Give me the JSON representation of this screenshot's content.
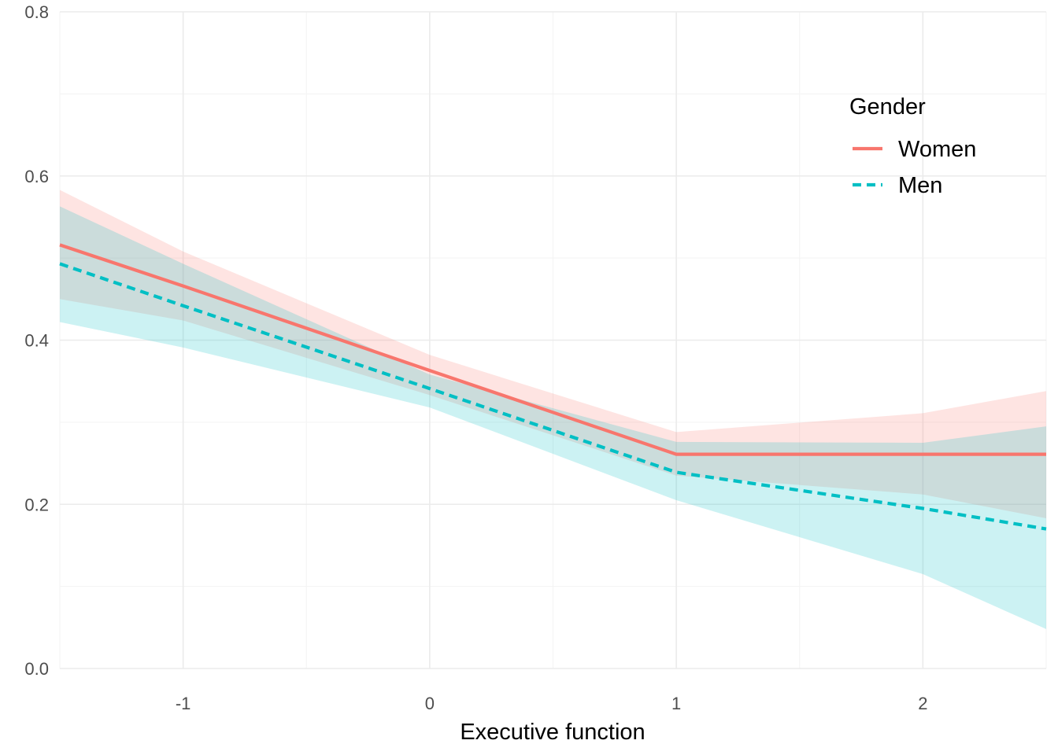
{
  "chart_data": {
    "type": "line",
    "xlabel": "Executive function",
    "ylabel": "",
    "xlim": [
      -1.5,
      2.5
    ],
    "ylim": [
      0,
      0.8
    ],
    "x_ticks": [
      -1,
      0,
      1,
      2
    ],
    "x_tick_labels": [
      "-1",
      "0",
      "1",
      "2"
    ],
    "y_ticks": [
      0,
      0.2,
      0.4,
      0.6,
      0.8
    ],
    "y_tick_labels": [
      "0.0",
      "0.2",
      "0.4",
      "0.6",
      "0.8"
    ],
    "grid": true,
    "legend": {
      "title": "Gender",
      "position": "top-right"
    },
    "x": [
      -1.5,
      -1,
      0,
      1,
      2,
      2.5
    ],
    "series": [
      {
        "name": "Women",
        "color": "#F8766D",
        "line_style": "solid",
        "values": [
          0.516,
          0.466,
          0.363,
          0.261,
          0.261,
          0.261
        ],
        "lower": [
          0.45,
          0.424,
          0.333,
          0.235,
          0.212,
          0.183
        ],
        "upper": [
          0.583,
          0.508,
          0.382,
          0.288,
          0.311,
          0.338
        ]
      },
      {
        "name": "Men",
        "color": "#00BFC4",
        "line_style": "dashed",
        "values": [
          0.493,
          0.442,
          0.341,
          0.239,
          0.195,
          0.17
        ],
        "lower": [
          0.422,
          0.391,
          0.318,
          0.205,
          0.115,
          0.048
        ],
        "upper": [
          0.563,
          0.493,
          0.358,
          0.276,
          0.275,
          0.295
        ]
      }
    ]
  }
}
